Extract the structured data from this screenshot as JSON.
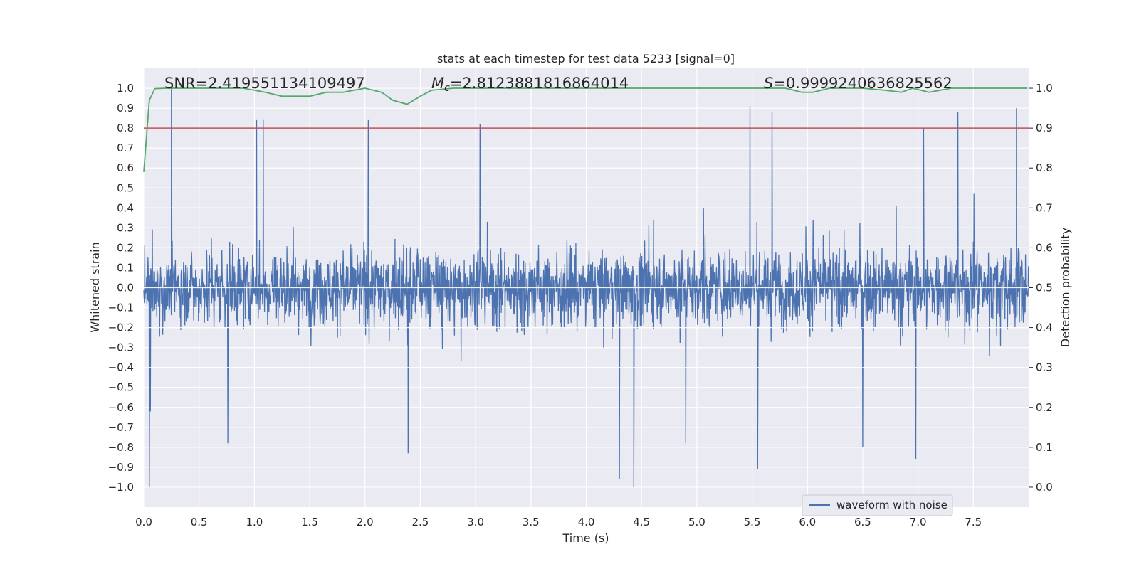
{
  "chart_data": {
    "type": "line",
    "title": "stats at each timestep for test data 5233 [signal=0]",
    "xlabel": "Time (s)",
    "ylabel_left": "Whitened strain",
    "ylabel_right": "Detection probability",
    "xlim": [
      0.0,
      8.0
    ],
    "ylim_left": [
      -1.1,
      1.1
    ],
    "ylim_right": [
      -0.05,
      1.05
    ],
    "x_ticks": [
      "0.0",
      "0.5",
      "1.0",
      "1.5",
      "2.0",
      "2.5",
      "3.0",
      "3.5",
      "4.0",
      "4.5",
      "5.0",
      "5.5",
      "6.0",
      "6.5",
      "7.0",
      "7.5"
    ],
    "y_ticks_left": [
      "−1.0",
      "−0.9",
      "−0.8",
      "−0.7",
      "−0.6",
      "−0.5",
      "−0.4",
      "−0.3",
      "−0.2",
      "−0.1",
      "0.0",
      "0.1",
      "0.2",
      "0.3",
      "0.4",
      "0.5",
      "0.6",
      "0.7",
      "0.8",
      "0.9",
      "1.0"
    ],
    "y_ticks_right": [
      "0.0",
      "0.1",
      "0.2",
      "0.3",
      "0.4",
      "0.5",
      "0.6",
      "0.7",
      "0.8",
      "0.9",
      "1.0"
    ],
    "grid": true,
    "legend_position": "lower-right",
    "annotations": {
      "snr": "SNR=2.419551134109497",
      "mc_symbol": "M",
      "mc_sub": "c",
      "mc_value": "=2.8123881816864014",
      "s_symbol": "S",
      "s_value": "=0.9999240636825562"
    },
    "threshold": {
      "axis": "right",
      "value": 0.9,
      "color": "#c44e52"
    },
    "series": [
      {
        "name": "waveform with noise",
        "axis": "left",
        "color": "#4c72b0",
        "kind": "noise",
        "peaks": [
          {
            "x": 0.25,
            "y": 1.0
          },
          {
            "x": 0.05,
            "y": -1.0
          },
          {
            "x": 0.06,
            "y": -0.62
          },
          {
            "x": 1.02,
            "y": 0.84
          },
          {
            "x": 1.08,
            "y": 0.84
          },
          {
            "x": 2.03,
            "y": 0.84
          },
          {
            "x": 3.04,
            "y": 0.82
          },
          {
            "x": 5.48,
            "y": 0.91
          },
          {
            "x": 5.68,
            "y": 0.88
          },
          {
            "x": 7.36,
            "y": 0.88
          },
          {
            "x": 7.89,
            "y": 0.9
          },
          {
            "x": 7.05,
            "y": 0.8
          },
          {
            "x": 2.39,
            "y": -0.83
          },
          {
            "x": 4.3,
            "y": -0.96
          },
          {
            "x": 4.43,
            "y": -1.0
          },
          {
            "x": 5.55,
            "y": -0.91
          },
          {
            "x": 6.98,
            "y": -0.86
          },
          {
            "x": 6.5,
            "y": -0.8
          },
          {
            "x": 0.76,
            "y": -0.78
          },
          {
            "x": 4.9,
            "y": -0.78
          }
        ]
      },
      {
        "name": "Detection probability",
        "axis": "right",
        "color": "#55a868",
        "x": [
          0.0,
          0.05,
          0.1,
          0.2,
          0.5,
          0.9,
          1.1,
          1.25,
          1.35,
          1.5,
          1.65,
          1.8,
          2.0,
          2.15,
          2.25,
          2.38,
          2.5,
          2.6,
          2.8,
          3.0,
          3.5,
          4.0,
          4.5,
          5.0,
          5.5,
          5.8,
          5.95,
          6.05,
          6.2,
          6.5,
          6.7,
          6.85,
          6.95,
          7.1,
          7.3,
          7.6,
          7.99
        ],
        "y": [
          0.79,
          0.97,
          0.999,
          1.0,
          1.0,
          1.0,
          0.99,
          0.98,
          0.98,
          0.98,
          0.99,
          0.99,
          1.0,
          0.99,
          0.97,
          0.96,
          0.98,
          0.995,
          1.0,
          1.0,
          1.0,
          1.0,
          1.0,
          1.0,
          1.0,
          1.0,
          0.99,
          0.99,
          1.0,
          1.0,
          0.995,
          0.99,
          1.0,
          0.99,
          1.0,
          1.0,
          1.0
        ]
      }
    ]
  }
}
